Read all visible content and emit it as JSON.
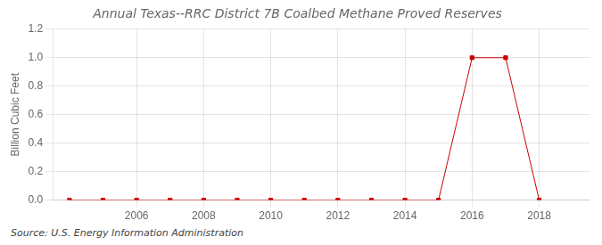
{
  "chart_data": {
    "type": "line",
    "title": "Annual Texas--RRC District 7B Coalbed Methane Proved Reserves",
    "ylabel": "Billion Cubic Feet",
    "annotations": [
      "Source: U.S. Energy Information Administration"
    ],
    "x": [
      2004,
      2005,
      2006,
      2007,
      2008,
      2009,
      2010,
      2011,
      2012,
      2013,
      2014,
      2015,
      2016,
      2017,
      2018
    ],
    "values": [
      0.0,
      0.0,
      0.0,
      0.0,
      0.0,
      0.0,
      0.0,
      0.0,
      0.0,
      0.0,
      0.0,
      0.0,
      1.0,
      1.0,
      0.0
    ],
    "color": "#cc0000",
    "marker": "square",
    "line_style": "solid",
    "xlim": [
      2003.5,
      2019.5
    ],
    "xticks": [
      2006,
      2008,
      2010,
      2012,
      2014,
      2016,
      2018
    ],
    "ylim": [
      0.0,
      1.2
    ],
    "yticks": [
      {
        "value": 0,
        "label": "0.0"
      },
      0.2,
      0.4,
      0.6,
      0.8,
      {
        "value": 1,
        "label": "1.0"
      },
      1.2
    ],
    "grid": true
  }
}
